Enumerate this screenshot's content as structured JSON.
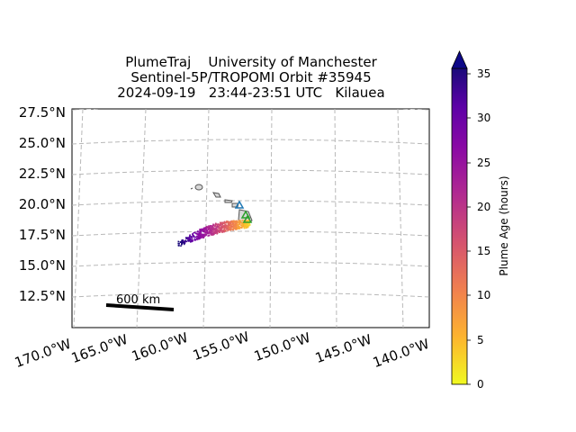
{
  "title": {
    "line1": "PlumeTraj    University of Manchester",
    "line2": "Sentinel-5P/TROPOMI Orbit #35945",
    "line3": "2024-09-19   23:44-23:51 UTC   Kilauea"
  },
  "map": {
    "lat_labels": [
      "27.5°N",
      "25.0°N",
      "22.5°N",
      "20.0°N",
      "17.5°N",
      "15.0°N",
      "12.5°N"
    ],
    "lon_labels": [
      "170.0°W",
      "165.0°W",
      "160.0°W",
      "155.0°W",
      "150.0°W",
      "145.0°W",
      "140.0°W"
    ],
    "scale_bar_label": "600 km",
    "volcano_marker_color": "#2ca02c",
    "island_outline_color": "#555555",
    "land_fill_color": "#d8d8d8",
    "grid_color": "#b0b0b0",
    "grid_style": "dashed"
  },
  "colorbar": {
    "label": "Plume Age (hours)",
    "ticks": [
      "0",
      "5",
      "10",
      "15",
      "20",
      "25",
      "30",
      "35"
    ],
    "colormap": "plasma_r",
    "extend": "max"
  }
}
